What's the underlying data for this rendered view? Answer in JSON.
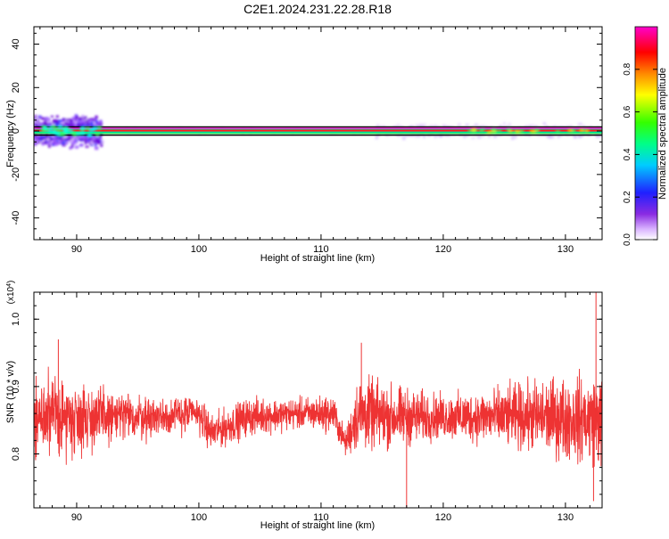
{
  "title": "C2E1.2024.231.22.28.R18",
  "chart_data": [
    {
      "type": "heatmap",
      "xlabel": "Height of straight line (km)",
      "ylabel": "Frequency (Hz)",
      "xlim": [
        86.5,
        133
      ],
      "ylim": [
        -50,
        48
      ],
      "xticks": [
        90,
        100,
        110,
        120,
        130
      ],
      "xtick_labels": [
        "90",
        "100",
        "110",
        "120",
        "130"
      ],
      "yticks": [
        -40,
        -20,
        0,
        20,
        40
      ],
      "ytick_labels": [
        "-40",
        "-20",
        "0",
        "20",
        "40"
      ],
      "colorbar": {
        "label": "Normalized spectral amplitude",
        "range": [
          0,
          1
        ],
        "ticks": [
          0.0,
          0.2,
          0.4,
          0.6,
          0.8
        ],
        "tick_labels": [
          "0.0",
          "0.2",
          "0.4",
          "0.6",
          "0.8"
        ],
        "colormap": "rainbow (white-purple-blue-cyan-green-yellow-red-magenta)"
      },
      "bands": [
        {
          "name": "strong carrier line",
          "frequency": 0,
          "x_range": [
            86.5,
            133
          ],
          "amplitude": 0.95
        },
        {
          "name": "secondary line (upper)",
          "frequency": 1.5,
          "x_range": [
            86.5,
            133
          ],
          "amplitude": 0.9
        },
        {
          "name": "secondary line (lower)",
          "frequency": -1.5,
          "x_range": [
            86.5,
            133
          ],
          "amplitude": 0.4
        },
        {
          "name": "broadened spread, low heights",
          "frequency_range": [
            -9,
            9
          ],
          "x_range": [
            86.5,
            92
          ],
          "amplitude": 0.25
        },
        {
          "name": "broadened spread, high heights",
          "frequency_range": [
            -4,
            4
          ],
          "x_range": [
            114.5,
            133
          ],
          "amplitude": 0.08
        }
      ],
      "grid": false
    },
    {
      "type": "line",
      "xlabel": "Height of straight line (km)",
      "ylabel": "SNR (10 * v/v)",
      "y_multiplier": "(x10^4)",
      "xlim": [
        86.5,
        133
      ],
      "ylim": [
        0.72,
        1.04
      ],
      "xticks": [
        90,
        100,
        110,
        120,
        130
      ],
      "xtick_labels": [
        "90",
        "100",
        "110",
        "120",
        "130"
      ],
      "yticks": [
        0.8,
        0.9,
        1.0
      ],
      "ytick_labels": [
        "0.8",
        "0.9",
        "1.0"
      ],
      "series_color": "#ee3333",
      "envelope": [
        {
          "x": 86.5,
          "mean": 0.855,
          "spread": 0.065
        },
        {
          "x": 90,
          "mean": 0.855,
          "spread": 0.06
        },
        {
          "x": 93,
          "mean": 0.855,
          "spread": 0.045
        },
        {
          "x": 96,
          "mean": 0.855,
          "spread": 0.035
        },
        {
          "x": 100,
          "mean": 0.86,
          "spread": 0.03
        },
        {
          "x": 101,
          "mean": 0.83,
          "spread": 0.03
        },
        {
          "x": 104,
          "mean": 0.855,
          "spread": 0.03
        },
        {
          "x": 108,
          "mean": 0.86,
          "spread": 0.025
        },
        {
          "x": 111,
          "mean": 0.86,
          "spread": 0.03
        },
        {
          "x": 112,
          "mean": 0.815,
          "spread": 0.02
        },
        {
          "x": 113,
          "mean": 0.86,
          "spread": 0.06
        },
        {
          "x": 116,
          "mean": 0.855,
          "spread": 0.05
        },
        {
          "x": 120,
          "mean": 0.855,
          "spread": 0.035
        },
        {
          "x": 124,
          "mean": 0.855,
          "spread": 0.045
        },
        {
          "x": 128,
          "mean": 0.855,
          "spread": 0.06
        },
        {
          "x": 133,
          "mean": 0.85,
          "spread": 0.075
        }
      ],
      "peaks": [
        {
          "x": 132.5,
          "y": 1.04
        },
        {
          "x": 113.3,
          "y": 0.965
        },
        {
          "x": 88.5,
          "y": 0.97
        },
        {
          "x": 117.0,
          "y": 0.72
        },
        {
          "x": 132.3,
          "y": 0.73
        }
      ],
      "grid": false
    }
  ]
}
